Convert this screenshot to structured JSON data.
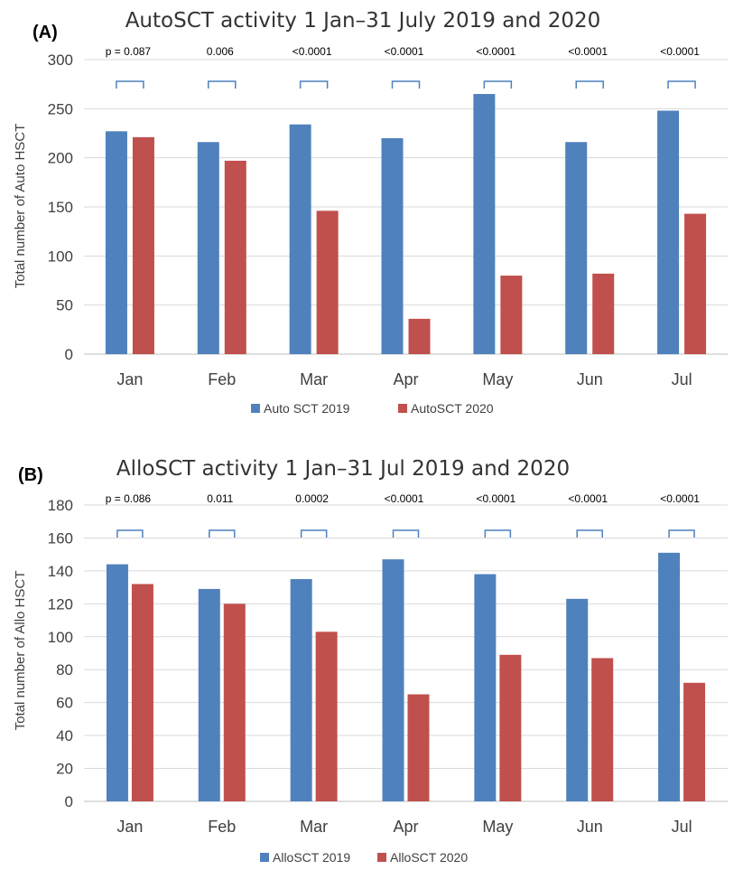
{
  "chart_data": [
    {
      "type": "bar",
      "panel_label": "(A)",
      "title": "AutoSCT activity 1 Jan–31 July 2019 and 2020",
      "xlabel": "",
      "ylabel": "Total number of Auto HSCT",
      "ylim": [
        0,
        300
      ],
      "yticks": [
        0,
        50,
        100,
        150,
        200,
        250,
        300
      ],
      "grid": true,
      "legend_position": "bottom",
      "categories": [
        "Jan",
        "Feb",
        "Mar",
        "Apr",
        "May",
        "Jun",
        "Jul"
      ],
      "series": [
        {
          "name": "Auto SCT 2019",
          "color": "#4f81bd",
          "values": [
            227,
            216,
            234,
            220,
            265,
            216,
            248
          ]
        },
        {
          "name": "AutoSCT 2020",
          "color": "#c0504d",
          "values": [
            221,
            197,
            146,
            36,
            80,
            82,
            143
          ]
        }
      ],
      "annotations": [
        "p = 0.087",
        "0.006",
        "<0.0001",
        "<0.0001",
        "<0.0001",
        "<0.0001",
        "<0.0001"
      ]
    },
    {
      "type": "bar",
      "panel_label": "(B)",
      "title": "AlloSCT activity 1 Jan–31 Jul 2019 and 2020",
      "xlabel": "",
      "ylabel": "Total number of Allo HSCT",
      "ylim": [
        0,
        180
      ],
      "yticks": [
        0,
        20,
        40,
        60,
        80,
        100,
        120,
        140,
        160,
        180
      ],
      "grid": true,
      "legend_position": "bottom",
      "categories": [
        "Jan",
        "Feb",
        "Mar",
        "Apr",
        "May",
        "Jun",
        "Jul"
      ],
      "series": [
        {
          "name": "AlloSCT 2019",
          "color": "#4f81bd",
          "values": [
            144,
            129,
            135,
            147,
            138,
            123,
            151
          ]
        },
        {
          "name": "AlloSCT 2020",
          "color": "#c0504d",
          "values": [
            132,
            120,
            103,
            65,
            89,
            87,
            72
          ]
        }
      ],
      "annotations": [
        "p = 0.086",
        "0.011",
        "0.0002",
        "<0.0001",
        "<0.0001",
        "<0.0001",
        "<0.0001"
      ]
    }
  ]
}
